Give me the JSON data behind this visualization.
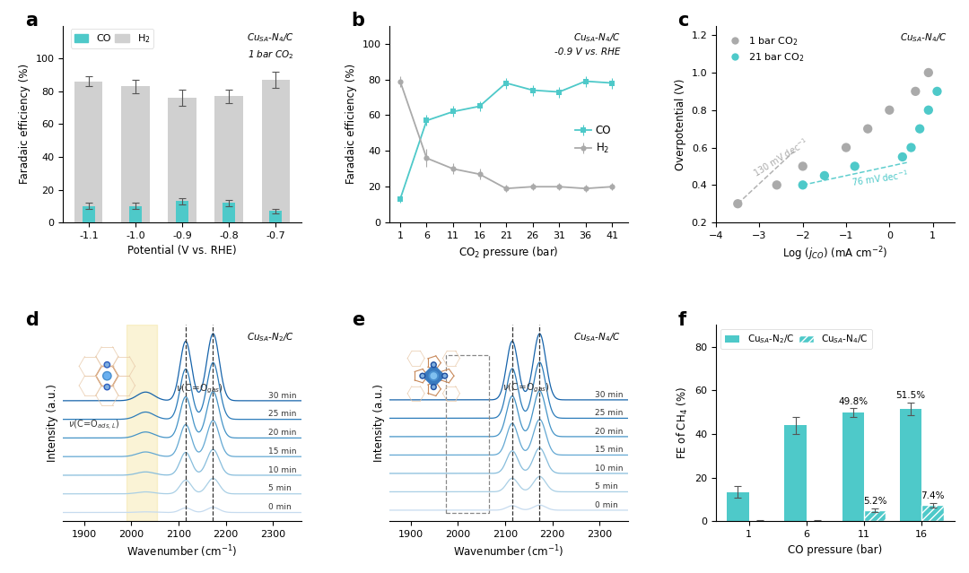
{
  "panel_a": {
    "potentials": [
      -1.1,
      -1.0,
      -0.9,
      -0.8,
      -0.7
    ],
    "CO_values": [
      10,
      10,
      13,
      12,
      7
    ],
    "CO_errors": [
      2,
      2,
      2,
      2,
      1.5
    ],
    "H2_values": [
      86,
      83,
      76,
      77,
      87
    ],
    "H2_errors": [
      3,
      4,
      5,
      4,
      5
    ],
    "CO_color": "#4ec9c9",
    "H2_color": "#d0d0d0",
    "xlabel": "Potential (V vs. RHE)",
    "ylabel": "Faradaic efficiency (%)",
    "ylim": [
      0,
      120
    ],
    "yticks": [
      0,
      20,
      40,
      60,
      80,
      100
    ]
  },
  "panel_b": {
    "pressures": [
      1,
      6,
      11,
      16,
      21,
      26,
      31,
      36,
      41
    ],
    "CO_values": [
      13,
      57,
      62,
      65,
      78,
      74,
      73,
      79,
      78
    ],
    "CO_errors": [
      2,
      3,
      3,
      3,
      3,
      3,
      3,
      3,
      3
    ],
    "H2_values": [
      79,
      36,
      30,
      27,
      19,
      20,
      20,
      19,
      20
    ],
    "H2_errors": [
      3,
      5,
      3,
      3,
      2,
      2,
      2,
      2,
      2
    ],
    "CO_color": "#4ec9c9",
    "H2_color": "#aaaaaa",
    "xlabel": "CO$_2$ pressure (bar)",
    "ylabel": "Faradaic efficiency (%)",
    "ylim": [
      0,
      110
    ],
    "yticks": [
      0,
      20,
      40,
      60,
      80,
      100
    ]
  },
  "panel_c": {
    "gray_x": [
      -3.5,
      -2.6,
      -2.0,
      -1.0,
      -0.5,
      0.0,
      0.6,
      0.9
    ],
    "gray_y": [
      0.3,
      0.4,
      0.5,
      0.6,
      0.7,
      0.8,
      0.9,
      1.0
    ],
    "cyan_x": [
      -2.0,
      -1.5,
      -0.8,
      0.3,
      0.5,
      0.7,
      0.9,
      1.1
    ],
    "cyan_y": [
      0.4,
      0.45,
      0.5,
      0.55,
      0.6,
      0.7,
      0.8,
      0.9
    ],
    "gray_fit_x": [
      -3.5,
      -2.2
    ],
    "gray_fit_y": [
      0.3,
      0.58
    ],
    "cyan_fit_x": [
      -2.0,
      0.3
    ],
    "cyan_fit_y": [
      0.4,
      0.52
    ],
    "gray_color": "#aaaaaa",
    "cyan_color": "#4ec9c9",
    "xlabel": "Log ($j_{CO}$) (mA cm$^{-2}$)",
    "ylabel": "Overpotential (V)",
    "xlim": [
      -4,
      1.5
    ],
    "ylim": [
      0.2,
      1.25
    ],
    "yticks": [
      0.2,
      0.4,
      0.6,
      0.8,
      1.0,
      1.2
    ],
    "xticks": [
      -4,
      -3,
      -2,
      -1,
      0,
      1
    ]
  },
  "panel_f": {
    "pressures": [
      1,
      6,
      11,
      16
    ],
    "N2C_values": [
      13.5,
      44,
      49.8,
      51.5
    ],
    "N2C_errors": [
      2.5,
      4,
      2,
      3
    ],
    "N4C_values": [
      0.3,
      0.3,
      5.2,
      7.4
    ],
    "N4C_errors": [
      0.3,
      0.3,
      0.8,
      1.2
    ],
    "N2C_color": "#4ec9c9",
    "N4C_color": "#4ec9c9",
    "xlabel": "CO pressure (bar)",
    "ylabel": "FE of CH$_4$ (%)",
    "ylim": [
      0,
      90
    ],
    "yticks": [
      0,
      20,
      40,
      60,
      80
    ]
  }
}
